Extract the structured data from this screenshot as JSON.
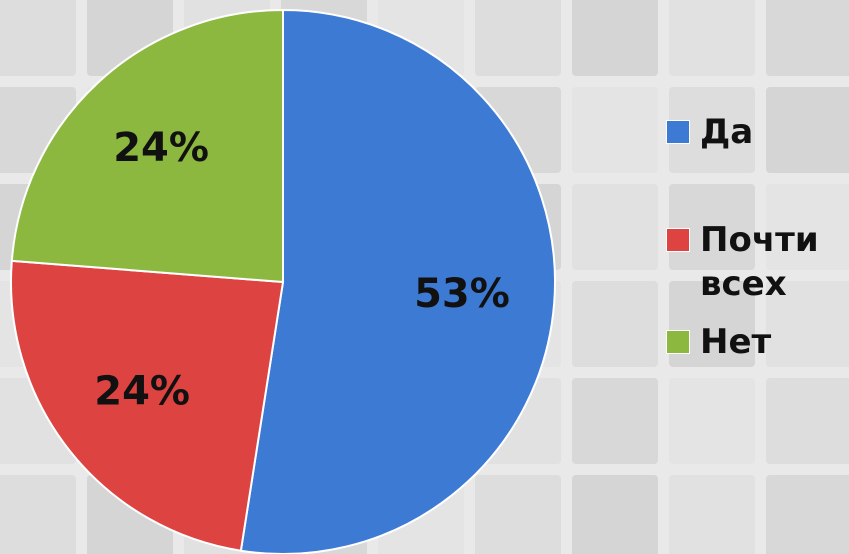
{
  "chart_data": {
    "type": "pie",
    "categories": [
      "Да",
      "Почти всех",
      "Нет"
    ],
    "values": [
      53,
      24,
      24
    ],
    "value_labels": [
      "53%",
      "24%",
      "24%"
    ],
    "colors": [
      "#3d7ad3",
      "#dd4341",
      "#8db83f"
    ],
    "legend": "right"
  }
}
